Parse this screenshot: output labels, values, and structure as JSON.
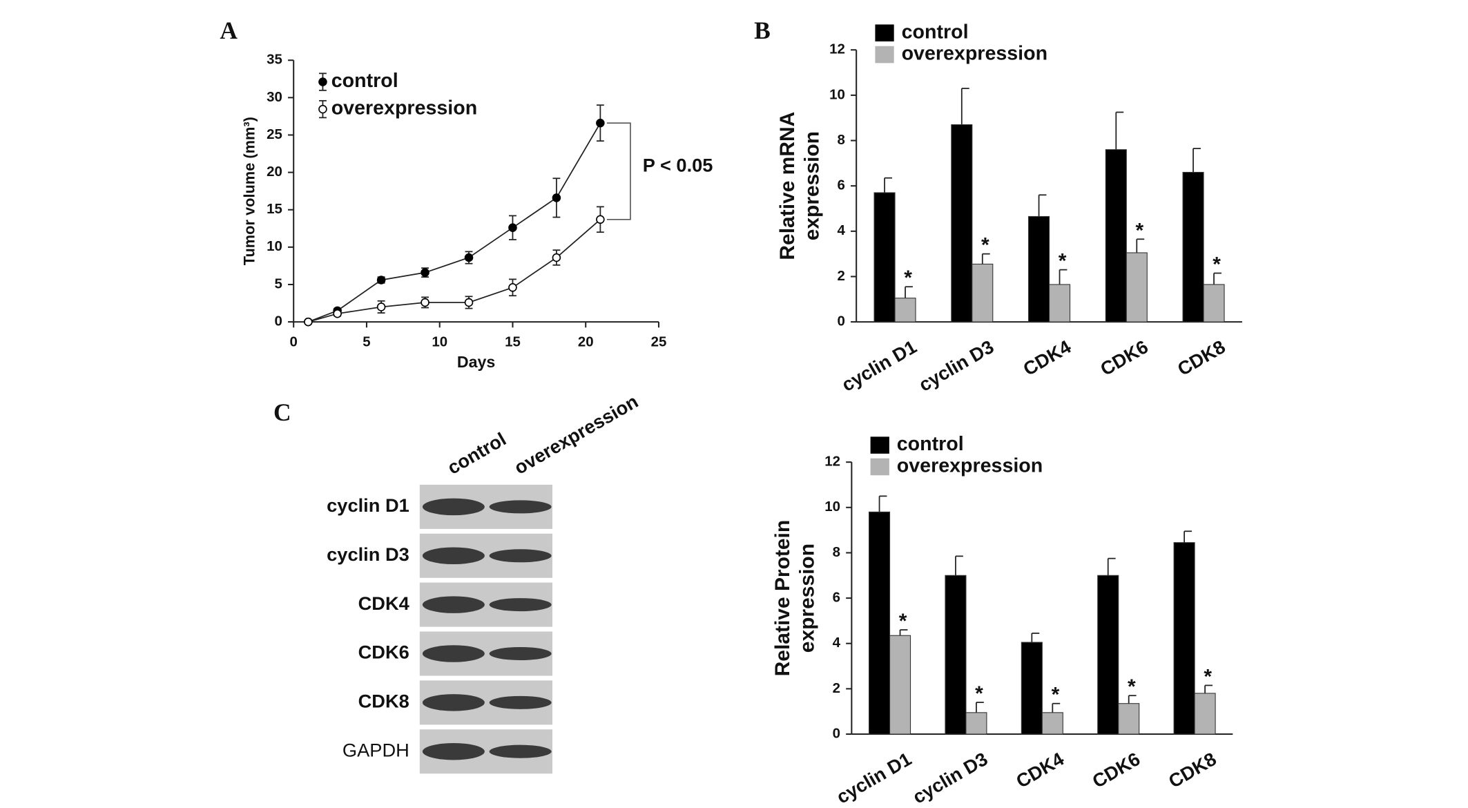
{
  "chart_data": [
    {
      "type": "line",
      "panel": "A",
      "x": [
        1,
        3,
        6,
        9,
        12,
        15,
        18,
        21
      ],
      "series": [
        {
          "name": "control",
          "color": "#000000",
          "values": [
            0,
            1.5,
            5.6,
            6.6,
            8.6,
            12.6,
            16.6,
            26.6
          ],
          "errors": [
            0,
            0.3,
            0.4,
            0.6,
            0.8,
            1.6,
            2.6,
            2.4
          ]
        },
        {
          "name": "overexpression",
          "color": "#ffffff",
          "values": [
            0,
            1.1,
            2.0,
            2.6,
            2.6,
            4.6,
            8.6,
            13.7
          ],
          "errors": [
            0,
            0.3,
            0.8,
            0.7,
            0.8,
            1.1,
            1.0,
            1.7
          ]
        }
      ],
      "xlabel": "Days",
      "ylabel": "Tumor volume (mm³)",
      "xlim": [
        0,
        25
      ],
      "xticks": [
        0,
        5,
        10,
        15,
        20,
        25
      ],
      "ylim": [
        0,
        35
      ],
      "yticks": [
        0,
        5,
        10,
        15,
        20,
        25,
        30,
        35
      ],
      "annotation": "P < 0.05"
    },
    {
      "type": "bar",
      "panel": "B",
      "categories": [
        "cyclin D1",
        "cyclin D3",
        "CDK4",
        "CDK6",
        "CDK8"
      ],
      "series": [
        {
          "name": "control",
          "color": "#000000",
          "values": [
            5.7,
            8.7,
            4.65,
            7.6,
            6.6
          ],
          "errors": [
            0.65,
            1.6,
            0.95,
            1.65,
            1.05
          ]
        },
        {
          "name": "overexpression",
          "color": "#b3b3b3",
          "values": [
            1.05,
            2.55,
            1.65,
            3.05,
            1.65
          ],
          "errors": [
            0.5,
            0.45,
            0.65,
            0.6,
            0.5
          ],
          "annotations": [
            "*",
            "*",
            "*",
            "*",
            "*"
          ]
        }
      ],
      "ylabel": [
        "Relative mRNA",
        "expression"
      ],
      "ylim": [
        0,
        12
      ],
      "yticks": [
        0,
        2,
        4,
        6,
        8,
        10,
        12
      ]
    },
    {
      "type": "bar",
      "categories": [
        "cyclin D1",
        "cyclin D3",
        "CDK4",
        "CDK6",
        "CDK8"
      ],
      "series": [
        {
          "name": "control",
          "color": "#000000",
          "values": [
            9.8,
            7.0,
            4.05,
            7.0,
            8.45
          ],
          "errors": [
            0.7,
            0.85,
            0.4,
            0.75,
            0.5
          ]
        },
        {
          "name": "overexpression",
          "color": "#b3b3b3",
          "values": [
            4.35,
            0.95,
            0.95,
            1.35,
            1.8
          ],
          "errors": [
            0.25,
            0.45,
            0.4,
            0.35,
            0.35
          ],
          "annotations": [
            "*",
            "*",
            "*",
            "*",
            "*"
          ]
        }
      ],
      "ylabel": [
        "Relative  Protein",
        "expression"
      ],
      "ylim": [
        0,
        12
      ],
      "yticks": [
        0,
        2,
        4,
        6,
        8,
        10,
        12
      ]
    }
  ],
  "blot": {
    "panel": "C",
    "columns": [
      "control",
      "overexpression"
    ],
    "rows": [
      "cyclin D1",
      "cyclin D3",
      "CDK4",
      "CDK6",
      "CDK8",
      "GAPDH"
    ]
  }
}
